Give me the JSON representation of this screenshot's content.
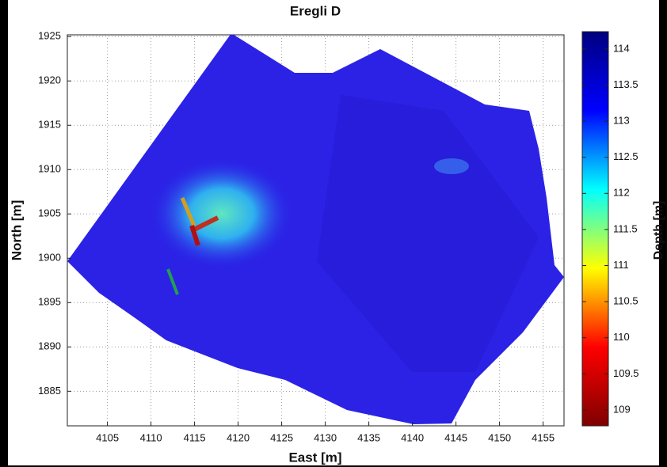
{
  "chart_data": {
    "type": "heatmap",
    "title": "Eregli D",
    "x_label": "East [m]",
    "y_label": "North [m]",
    "xlim": [
      4100.4,
      4157.4
    ],
    "xticks": [
      4105,
      4110,
      4115,
      4120,
      4125,
      4130,
      4135,
      4140,
      4145,
      4150,
      4155
    ],
    "ylim": [
      1881.1,
      1925.2
    ],
    "yticks": [
      1885,
      1890,
      1895,
      1900,
      1905,
      1910,
      1915,
      1920,
      1925
    ],
    "grid": true,
    "colorbar": {
      "label": "Depth [m]",
      "lim": [
        108.78,
        114.24
      ],
      "ticks": [
        109,
        109.5,
        110,
        110.5,
        111,
        111.5,
        112,
        112.5,
        113,
        113.5,
        114
      ],
      "colormap": [
        "#7f0000",
        "#ff0000",
        "#ffff00",
        "#00ffff",
        "#0000ff",
        "#00007f"
      ]
    }
  }
}
